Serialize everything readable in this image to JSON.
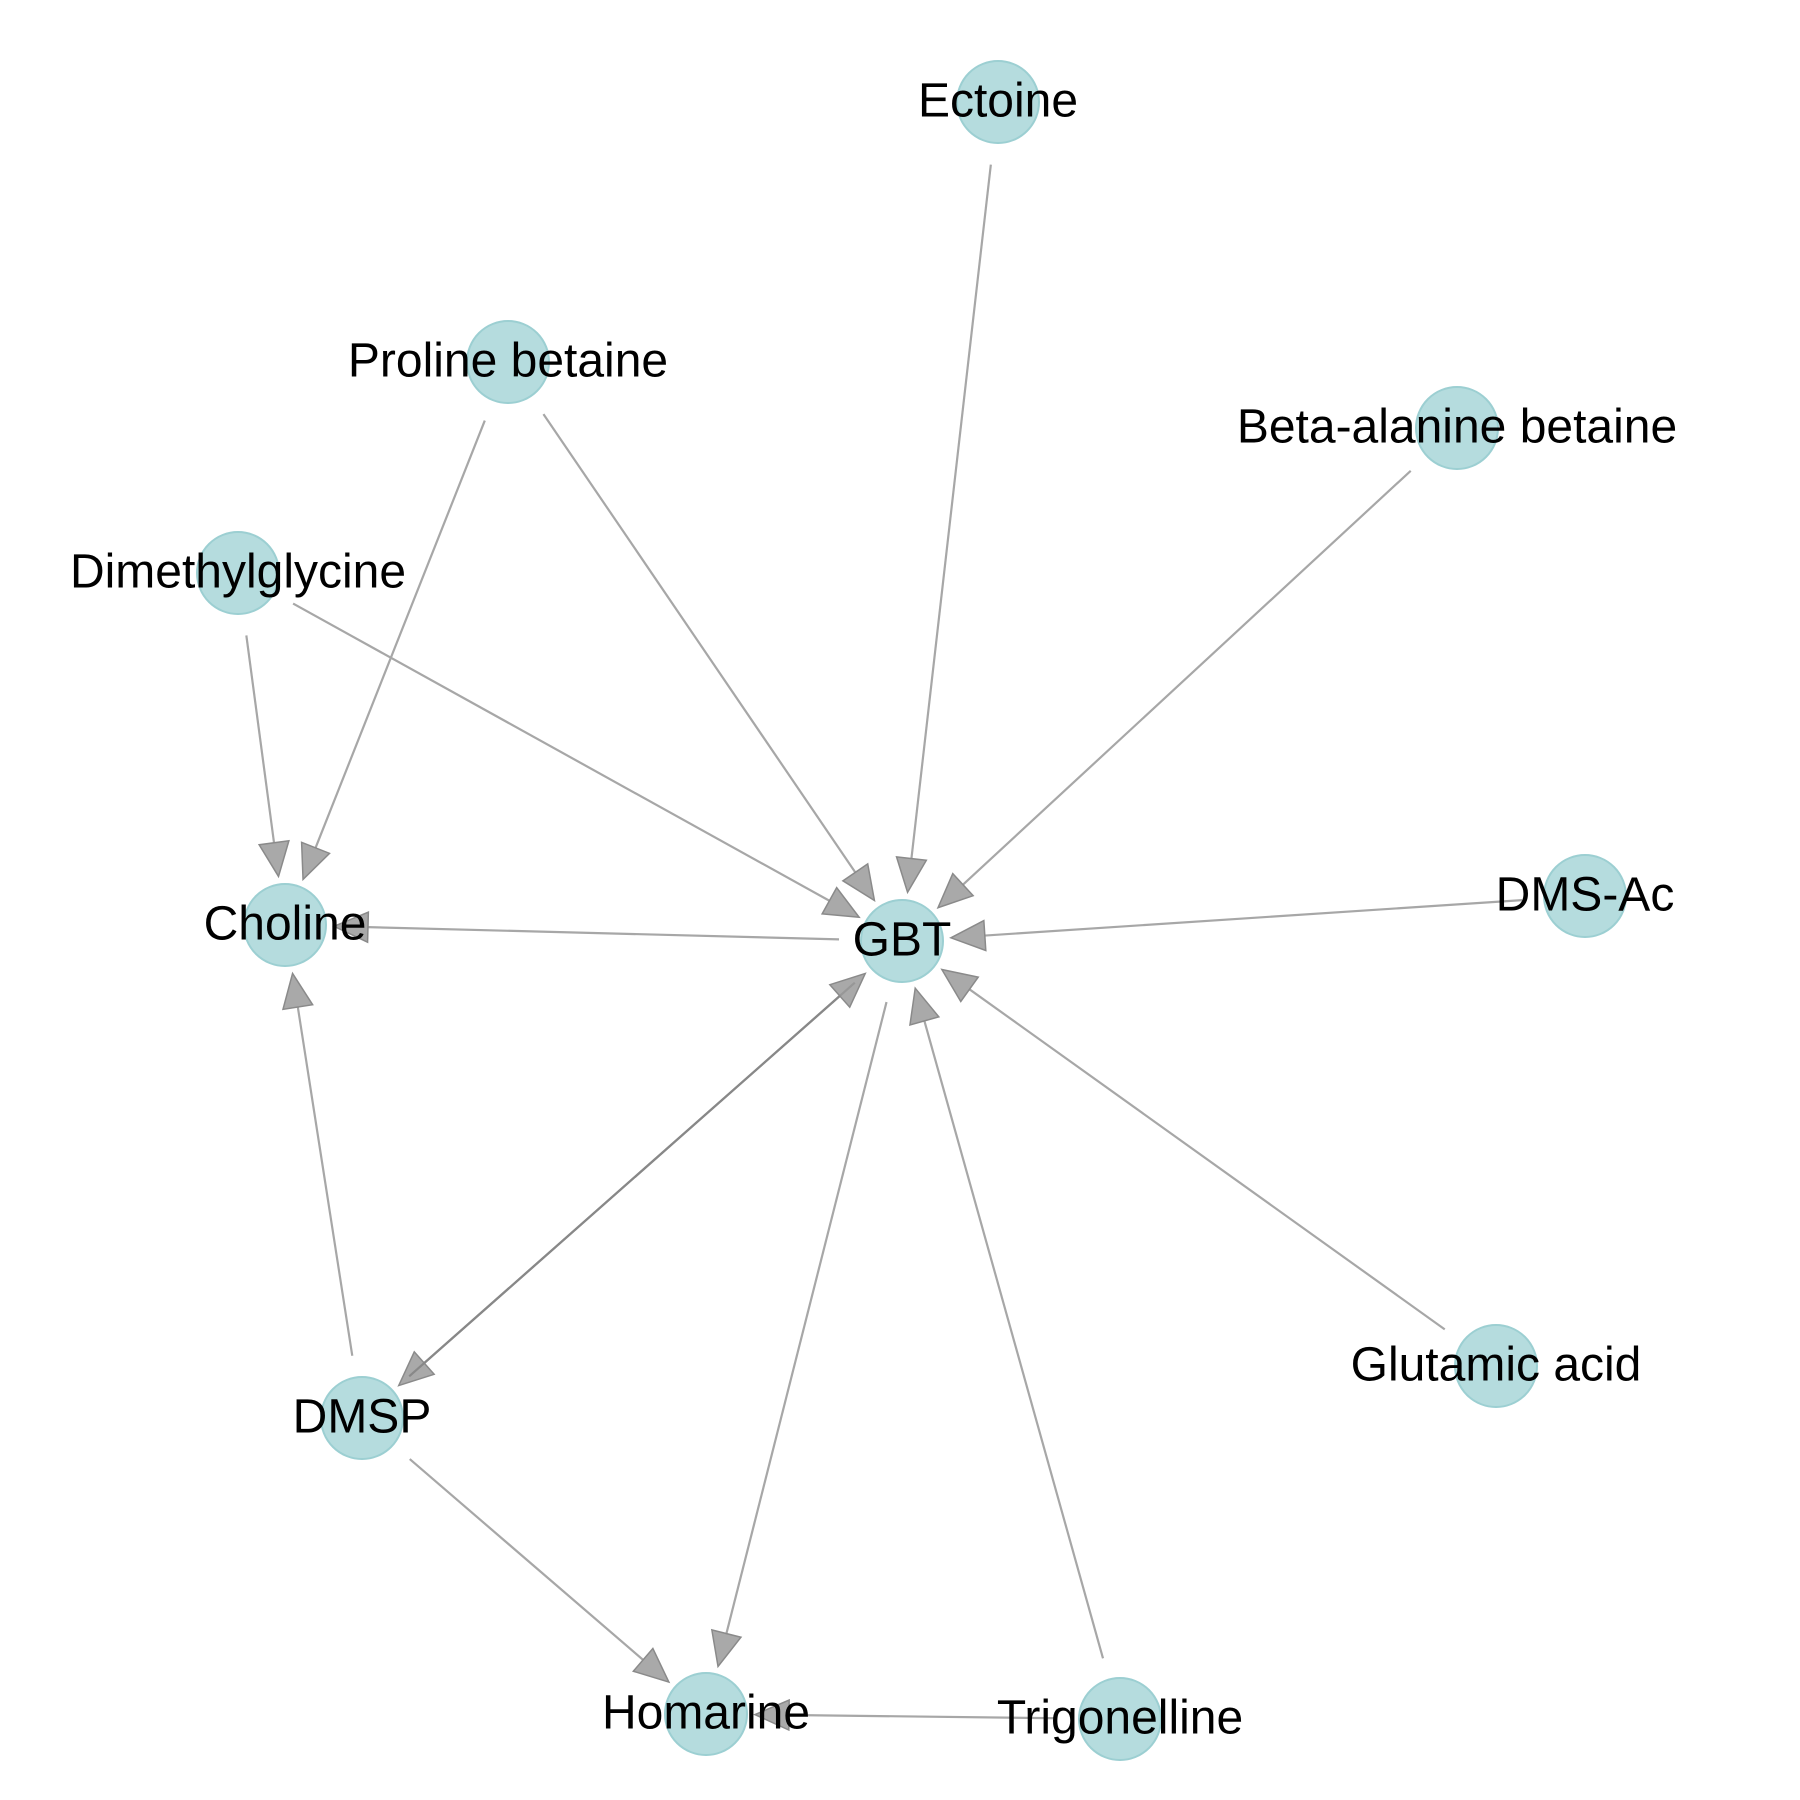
{
  "colors": {
    "node_fill": "#b5dcde",
    "edge": "#a7a7a7",
    "arrow": "#9a9a9a",
    "background": "#ffffff"
  },
  "nodes": [
    {
      "id": "ectoine",
      "label": "Ectoine"
    },
    {
      "id": "proline-betaine",
      "label": "Proline betaine"
    },
    {
      "id": "beta-alanine-betaine",
      "label": "Beta-alanine betaine"
    },
    {
      "id": "dimethylglycine",
      "label": "Dimethylglycine"
    },
    {
      "id": "choline",
      "label": "Choline"
    },
    {
      "id": "gbt",
      "label": "GBT"
    },
    {
      "id": "dms-ac",
      "label": "DMS-Ac"
    },
    {
      "id": "dmsp",
      "label": "DMSP"
    },
    {
      "id": "glutamic-acid",
      "label": "Glutamic acid"
    },
    {
      "id": "homarine",
      "label": "Homarine"
    },
    {
      "id": "trigonelline",
      "label": "Trigonelline"
    }
  ],
  "edges": [
    {
      "from": "ectoine",
      "to": "gbt"
    },
    {
      "from": "proline-betaine",
      "to": "gbt"
    },
    {
      "from": "proline-betaine",
      "to": "choline"
    },
    {
      "from": "beta-alanine-betaine",
      "to": "gbt"
    },
    {
      "from": "dimethylglycine",
      "to": "gbt"
    },
    {
      "from": "dimethylglycine",
      "to": "choline"
    },
    {
      "from": "gbt",
      "to": "choline"
    },
    {
      "from": "dms-ac",
      "to": "gbt"
    },
    {
      "from": "glutamic-acid",
      "to": "gbt"
    },
    {
      "from": "trigonelline",
      "to": "gbt"
    },
    {
      "from": "gbt",
      "to": "homarine"
    },
    {
      "from": "gbt",
      "to": "dmsp"
    },
    {
      "from": "dmsp",
      "to": "gbt"
    },
    {
      "from": "dmsp",
      "to": "choline"
    },
    {
      "from": "dmsp",
      "to": "homarine"
    },
    {
      "from": "trigonelline",
      "to": "homarine"
    }
  ]
}
